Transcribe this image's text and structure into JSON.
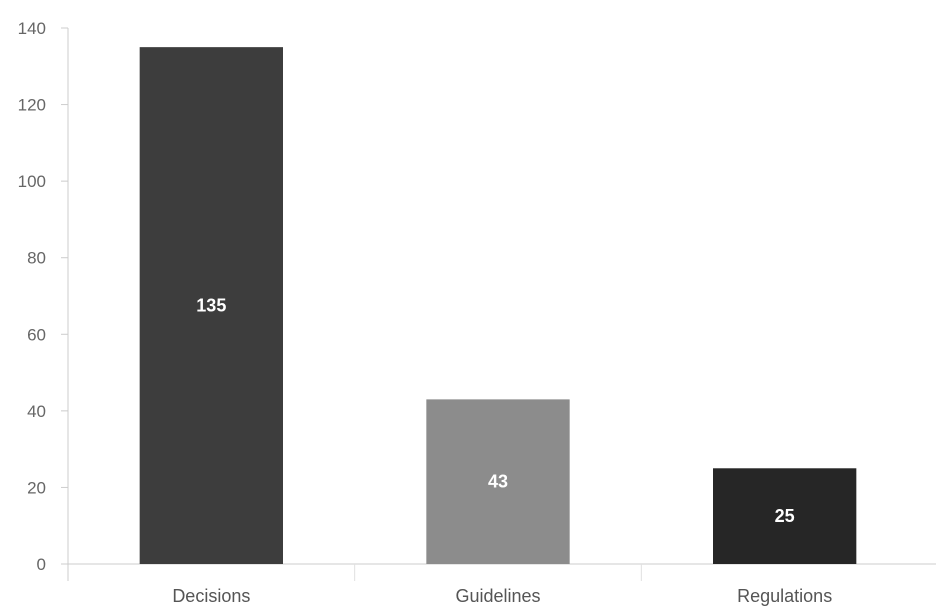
{
  "chart_data": {
    "type": "bar",
    "title": "",
    "xlabel": "",
    "ylabel": "",
    "categories": [
      "Decisions",
      "Guidelines",
      "Regulations"
    ],
    "values": [
      135,
      43,
      25
    ],
    "data_labels": [
      "135",
      "43",
      "25"
    ],
    "bar_colors": [
      "#3d3d3d",
      "#8c8c8c",
      "#262626"
    ],
    "ylim": [
      0,
      140
    ],
    "yticks": [
      0,
      20,
      40,
      60,
      80,
      100,
      120,
      140
    ],
    "ytick_labels": [
      "0",
      "20",
      "40",
      "60",
      "80",
      "100",
      "120",
      "140"
    ],
    "grid": false,
    "legend": "none"
  }
}
